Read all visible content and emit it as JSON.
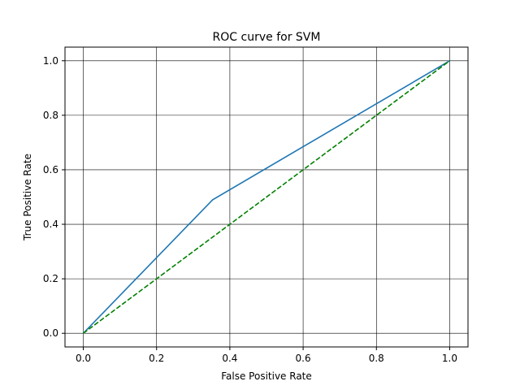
{
  "chart_data": {
    "type": "line",
    "title": "ROC curve for SVM",
    "xlabel": "False Positive Rate",
    "ylabel": "True Positive Rate",
    "xlim": [
      -0.05,
      1.05
    ],
    "ylim": [
      -0.05,
      1.05
    ],
    "x_ticks": [
      0.0,
      0.2,
      0.4,
      0.6,
      0.8,
      1.0
    ],
    "x_tick_labels": [
      "0.0",
      "0.2",
      "0.4",
      "0.6",
      "0.8",
      "1.0"
    ],
    "y_ticks": [
      0.0,
      0.2,
      0.4,
      0.6,
      0.8,
      1.0
    ],
    "y_tick_labels": [
      "0.0",
      "0.2",
      "0.4",
      "0.6",
      "0.8",
      "1.0"
    ],
    "grid": true,
    "grid_color": "#000000",
    "series": [
      {
        "style": "solid",
        "color": "#1f77b4",
        "x": [
          0.0,
          0.353,
          1.0
        ],
        "y": [
          0.0,
          0.49,
          1.0
        ]
      },
      {
        "style": "dashed",
        "color": "#008000",
        "x": [
          0.0,
          1.0
        ],
        "y": [
          0.0,
          1.0
        ]
      }
    ]
  }
}
